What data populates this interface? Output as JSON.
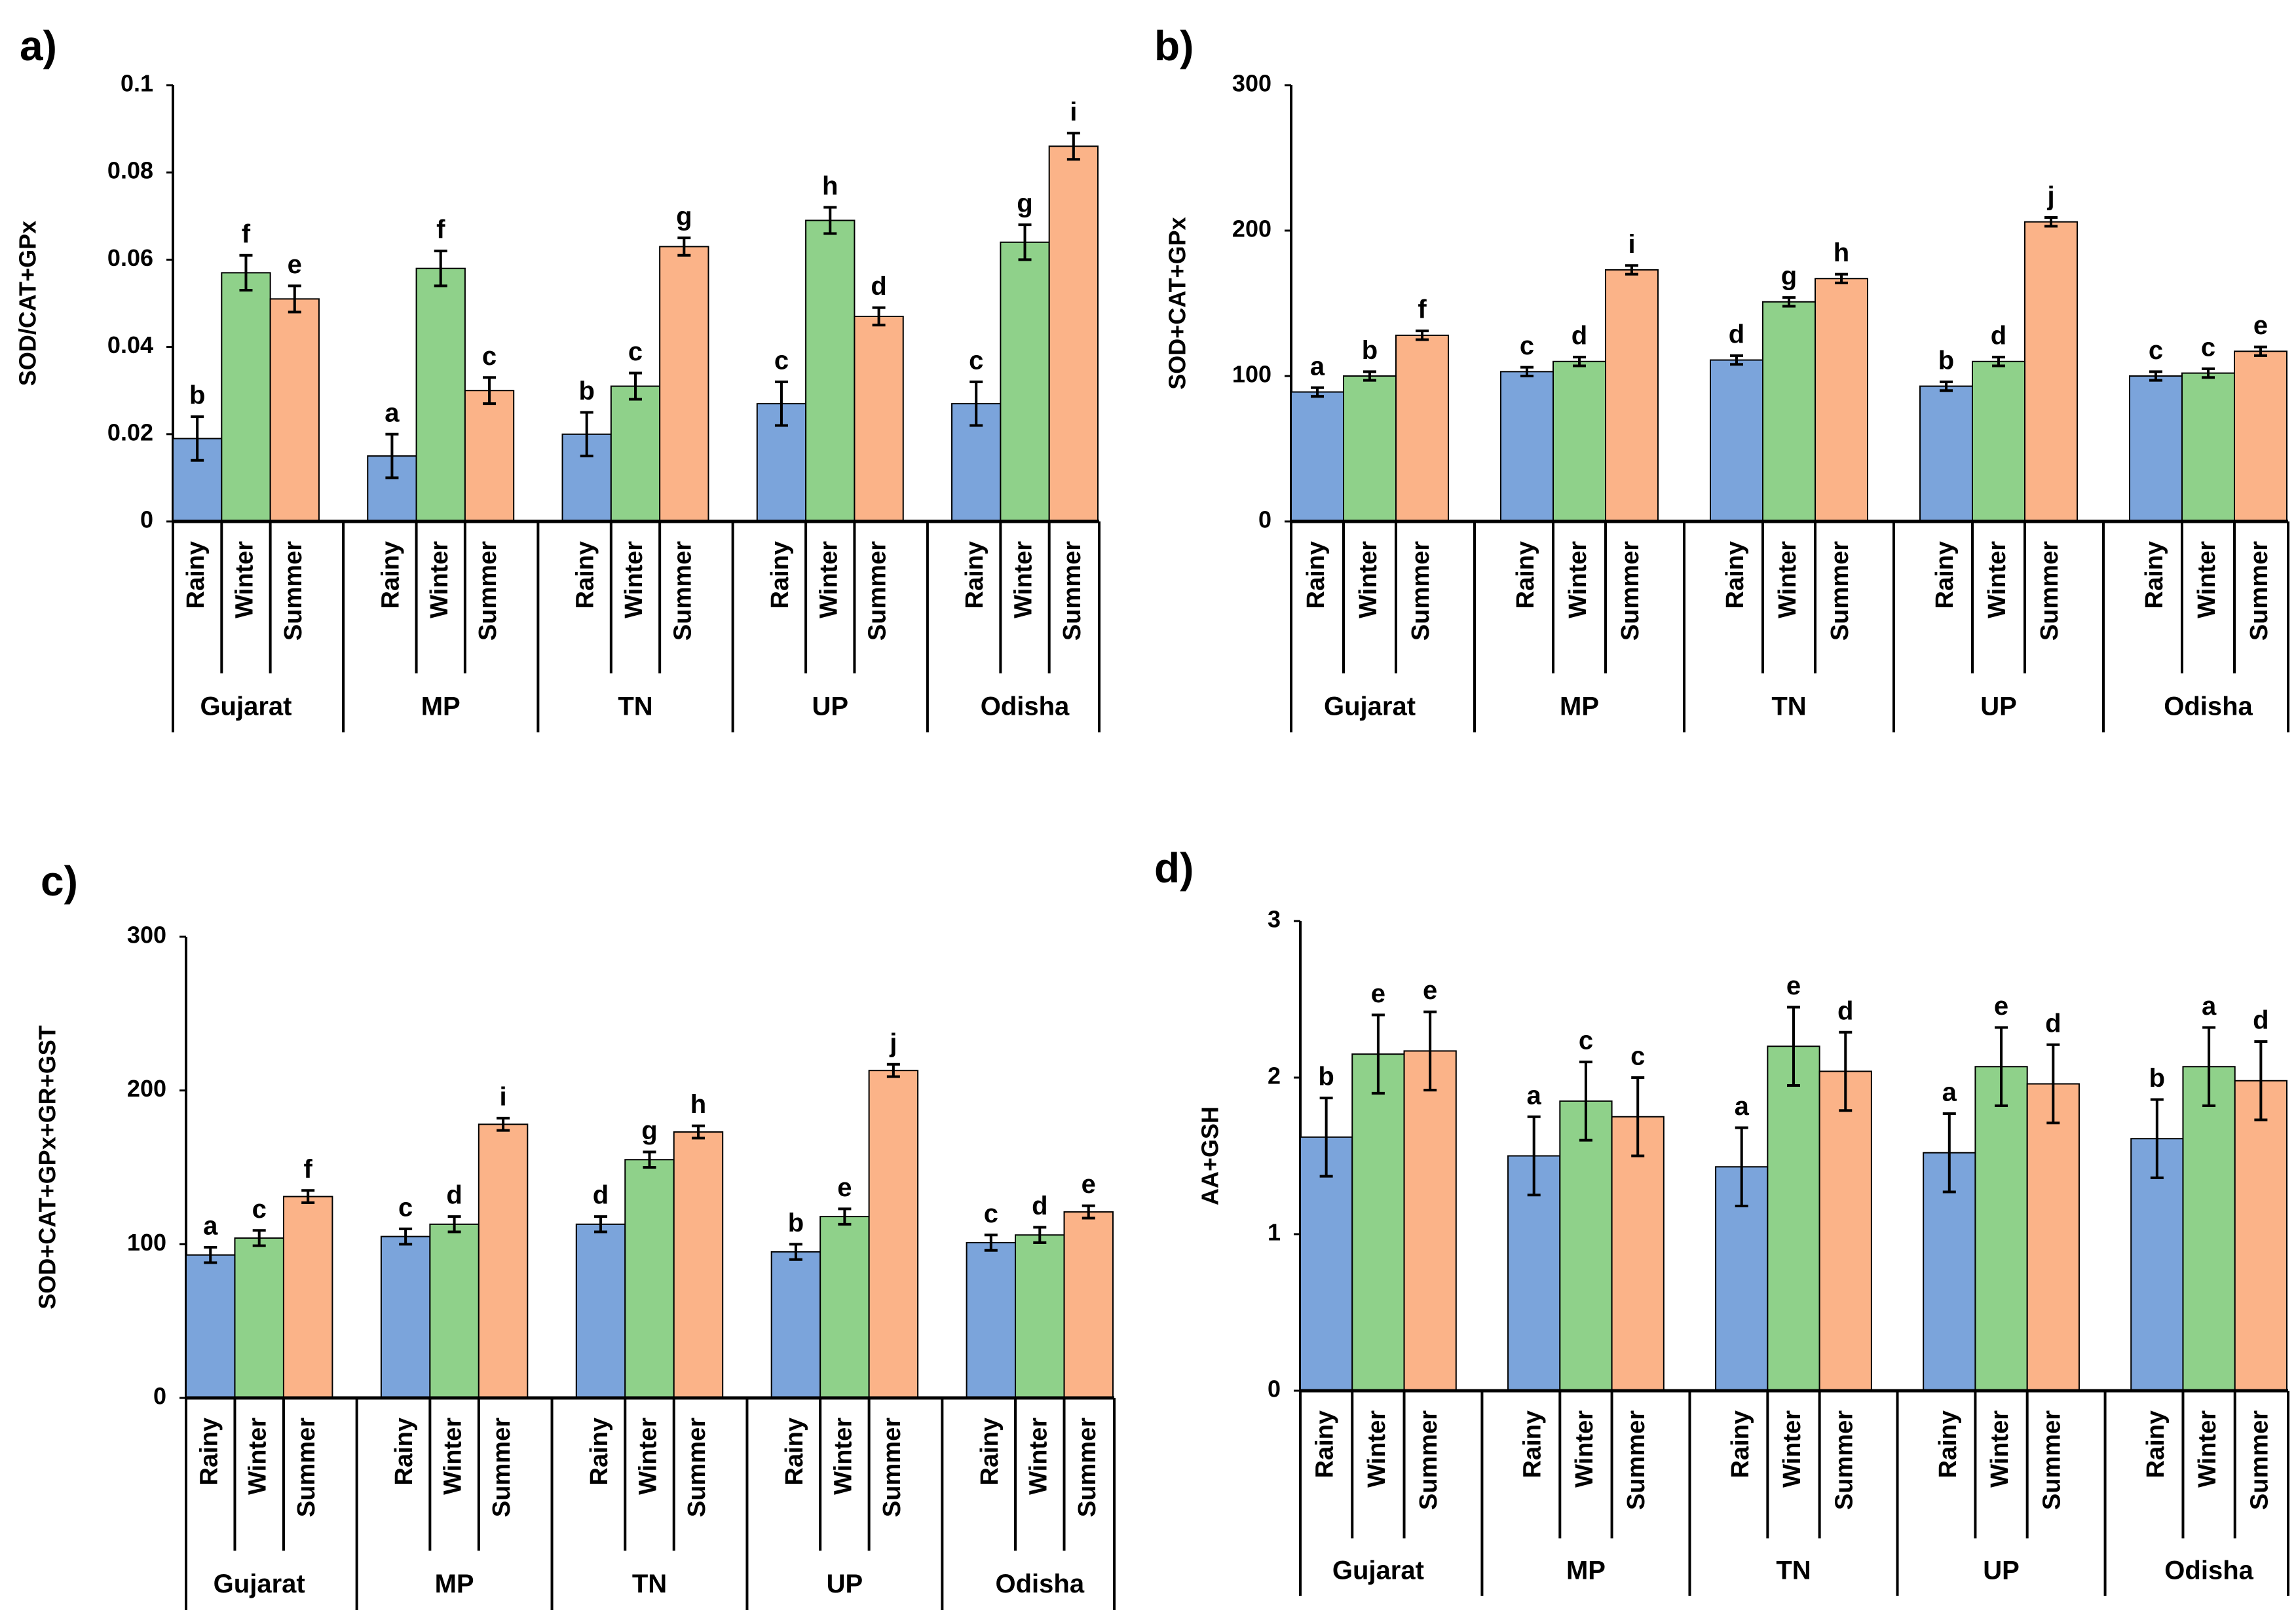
{
  "chart_data": [
    {
      "type": "bar",
      "panel_label": "a)",
      "ylabel": "SOD/CAT+GPx",
      "groups": [
        "Gujarat",
        "MP",
        "TN",
        "UP",
        "Odisha"
      ],
      "ylim": [
        0,
        0.1
      ],
      "yticks": [
        0,
        0.02,
        0.04,
        0.06,
        0.08,
        0.1
      ],
      "series": [
        {
          "name": "Rainy",
          "color": "#7ba4db",
          "values": [
            0.019,
            0.015,
            0.02,
            0.027,
            0.027
          ],
          "errors": [
            0.005,
            0.005,
            0.005,
            0.005,
            0.005
          ],
          "letters": [
            "b",
            "a",
            "b",
            "c",
            "c"
          ]
        },
        {
          "name": "Winter",
          "color": "#8fd18a",
          "values": [
            0.057,
            0.058,
            0.031,
            0.069,
            0.064
          ],
          "errors": [
            0.004,
            0.004,
            0.003,
            0.003,
            0.004
          ],
          "letters": [
            "f",
            "f",
            "c",
            "h",
            "g"
          ]
        },
        {
          "name": "Summer",
          "color": "#fbb388",
          "values": [
            0.051,
            0.03,
            0.063,
            0.047,
            0.086
          ],
          "errors": [
            0.003,
            0.003,
            0.002,
            0.002,
            0.003
          ],
          "letters": [
            "e",
            "c",
            "g",
            "d",
            "i"
          ]
        }
      ]
    },
    {
      "type": "bar",
      "panel_label": "b)",
      "ylabel": "SOD+CAT+GPx",
      "groups": [
        "Gujarat",
        "MP",
        "TN",
        "UP",
        "Odisha"
      ],
      "ylim": [
        0,
        300
      ],
      "yticks": [
        0,
        100,
        200,
        300
      ],
      "series": [
        {
          "name": "Rainy",
          "color": "#7ba4db",
          "values": [
            89,
            103,
            111,
            93,
            100
          ],
          "errors": [
            3,
            3,
            3,
            3,
            3
          ],
          "letters": [
            "a",
            "c",
            "d",
            "b",
            "c"
          ]
        },
        {
          "name": "Winter",
          "color": "#8fd18a",
          "values": [
            100,
            110,
            151,
            110,
            102
          ],
          "errors": [
            3,
            3,
            3,
            3,
            3
          ],
          "letters": [
            "b",
            "d",
            "g",
            "d",
            "c"
          ]
        },
        {
          "name": "Summer",
          "color": "#fbb388",
          "values": [
            128,
            173,
            167,
            206,
            117
          ],
          "errors": [
            3,
            3,
            3,
            3,
            3
          ],
          "letters": [
            "f",
            "i",
            "h",
            "j",
            "e"
          ]
        }
      ]
    },
    {
      "type": "bar",
      "panel_label": "c)",
      "ylabel": "SOD+CAT+GPx+GR+GST",
      "groups": [
        "Gujarat",
        "MP",
        "TN",
        "UP",
        "Odisha"
      ],
      "ylim": [
        0,
        300
      ],
      "yticks": [
        0,
        100,
        200,
        300
      ],
      "series": [
        {
          "name": "Rainy",
          "color": "#7ba4db",
          "values": [
            93,
            105,
            113,
            95,
            101
          ],
          "errors": [
            5,
            5,
            5,
            5,
            5
          ],
          "letters": [
            "a",
            "c",
            "d",
            "b",
            "c"
          ]
        },
        {
          "name": "Winter",
          "color": "#8fd18a",
          "values": [
            104,
            113,
            155,
            118,
            106
          ],
          "errors": [
            5,
            5,
            5,
            5,
            5
          ],
          "letters": [
            "c",
            "d",
            "g",
            "e",
            "d"
          ]
        },
        {
          "name": "Summer",
          "color": "#fbb388",
          "values": [
            131,
            178,
            173,
            213,
            121
          ],
          "errors": [
            4,
            4,
            4,
            4,
            4
          ],
          "letters": [
            "f",
            "i",
            "h",
            "j",
            "e"
          ]
        }
      ]
    },
    {
      "type": "bar",
      "panel_label": "d)",
      "ylabel": "AA+GSH",
      "groups": [
        "Gujarat",
        "MP",
        "TN",
        "UP",
        "Odisha"
      ],
      "ylim": [
        0,
        3
      ],
      "yticks": [
        0,
        1,
        2,
        3
      ],
      "series": [
        {
          "name": "Rainy",
          "color": "#7ba4db",
          "values": [
            1.62,
            1.5,
            1.43,
            1.52,
            1.61
          ],
          "errors": [
            0.25,
            0.25,
            0.25,
            0.25,
            0.25
          ],
          "letters": [
            "b",
            "a",
            "a",
            "a",
            "b"
          ]
        },
        {
          "name": "Winter",
          "color": "#8fd18a",
          "values": [
            2.15,
            1.85,
            2.2,
            2.07,
            2.07
          ],
          "errors": [
            0.25,
            0.25,
            0.25,
            0.25,
            0.25
          ],
          "letters": [
            "e",
            "c",
            "e",
            "e",
            "a"
          ]
        },
        {
          "name": "Summer",
          "color": "#fbb388",
          "values": [
            2.17,
            1.75,
            2.04,
            1.96,
            1.98
          ],
          "errors": [
            0.25,
            0.25,
            0.25,
            0.25,
            0.25
          ],
          "letters": [
            "e",
            "c",
            "d",
            "d",
            "d"
          ]
        }
      ]
    }
  ]
}
